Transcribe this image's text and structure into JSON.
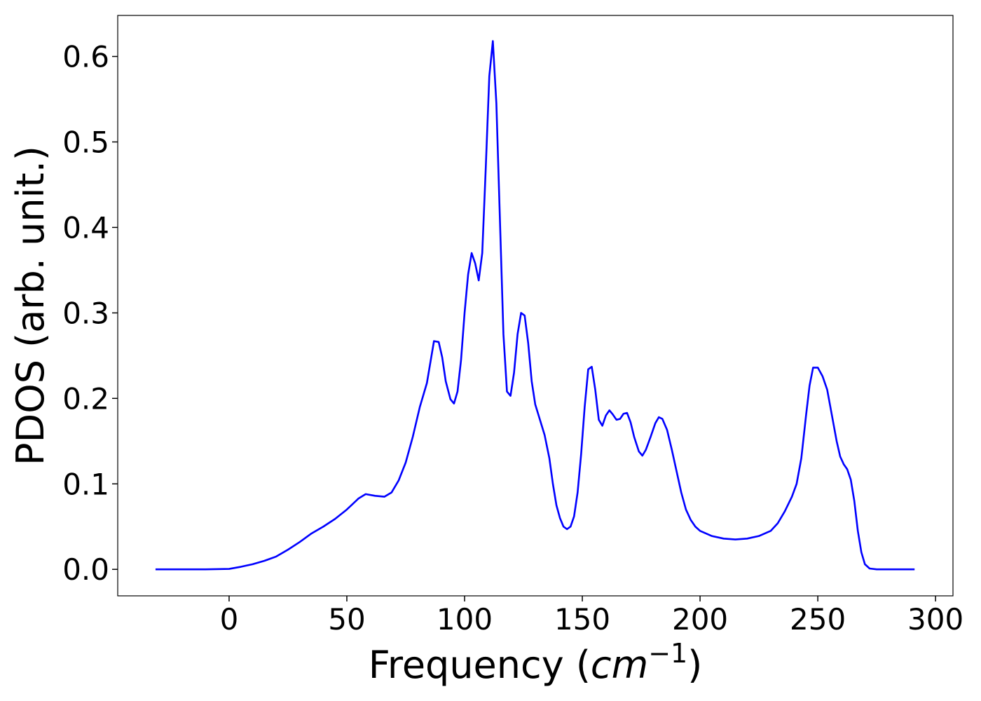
{
  "chart_data": {
    "type": "line",
    "xlabel_parts": [
      "Frequency (",
      "cm",
      "−1",
      ")"
    ],
    "ylabel": "PDOS (arb. unit.)",
    "x": [
      -31.25,
      -10,
      0,
      5,
      10,
      15,
      20,
      25,
      30,
      35,
      40,
      45,
      50,
      55,
      58,
      62,
      66,
      69,
      72,
      75,
      78,
      81,
      84,
      87,
      89,
      90.5,
      92,
      94,
      95.5,
      97,
      98.5,
      100,
      101.5,
      103,
      104.5,
      106,
      107.5,
      109,
      110.5,
      112,
      113.5,
      115,
      116.5,
      118,
      119.5,
      121,
      122.5,
      124,
      125.5,
      127,
      128.5,
      130,
      132,
      134,
      136,
      137.5,
      139,
      140.5,
      142,
      143.5,
      145,
      146.5,
      148,
      149.5,
      151,
      152.5,
      154,
      155.5,
      157,
      158.5,
      160,
      161.5,
      163,
      164.5,
      166,
      167.5,
      169,
      170.5,
      172,
      174,
      175.5,
      177,
      179,
      181,
      182.5,
      184,
      186,
      188,
      190,
      192,
      194,
      196,
      198,
      200,
      205,
      210,
      215,
      220,
      225,
      230,
      233,
      236,
      239,
      241,
      243,
      245,
      246.5,
      248,
      250,
      252,
      254,
      256,
      258,
      259.5,
      261,
      262.5,
      264,
      265.5,
      267,
      268.5,
      270,
      272,
      275,
      291.1
    ],
    "series": [
      {
        "name": "PDOS",
        "color": "#0000ff",
        "values": [
          0,
          0,
          0.0005,
          0.003,
          0.006,
          0.01,
          0.015,
          0.023,
          0.032,
          0.042,
          0.05,
          0.059,
          0.07,
          0.083,
          0.088,
          0.086,
          0.085,
          0.09,
          0.104,
          0.125,
          0.155,
          0.19,
          0.218,
          0.267,
          0.266,
          0.248,
          0.22,
          0.199,
          0.194,
          0.208,
          0.245,
          0.3,
          0.345,
          0.37,
          0.358,
          0.338,
          0.37,
          0.47,
          0.577,
          0.618,
          0.545,
          0.41,
          0.275,
          0.208,
          0.203,
          0.23,
          0.275,
          0.3,
          0.297,
          0.265,
          0.22,
          0.193,
          0.175,
          0.157,
          0.13,
          0.1,
          0.075,
          0.06,
          0.05,
          0.047,
          0.05,
          0.062,
          0.09,
          0.135,
          0.19,
          0.234,
          0.237,
          0.21,
          0.175,
          0.168,
          0.18,
          0.186,
          0.181,
          0.175,
          0.176,
          0.182,
          0.183,
          0.172,
          0.155,
          0.138,
          0.133,
          0.14,
          0.155,
          0.171,
          0.178,
          0.176,
          0.163,
          0.14,
          0.115,
          0.09,
          0.07,
          0.058,
          0.05,
          0.045,
          0.039,
          0.036,
          0.035,
          0.036,
          0.039,
          0.045,
          0.054,
          0.068,
          0.085,
          0.1,
          0.13,
          0.18,
          0.215,
          0.236,
          0.236,
          0.226,
          0.21,
          0.18,
          0.15,
          0.132,
          0.123,
          0.117,
          0.105,
          0.08,
          0.045,
          0.02,
          0.006,
          0.001,
          0,
          0
        ]
      }
    ],
    "xlim": [
      -47.3,
      307.4
    ],
    "ylim": [
      -0.031,
      0.648
    ],
    "xticks": [
      0,
      50,
      100,
      150,
      200,
      250,
      300
    ],
    "yticks": [
      {
        "value": 0,
        "label": "0.0"
      },
      0.1,
      0.2,
      0.3,
      0.4,
      0.5,
      0.6
    ],
    "grid": false
  }
}
